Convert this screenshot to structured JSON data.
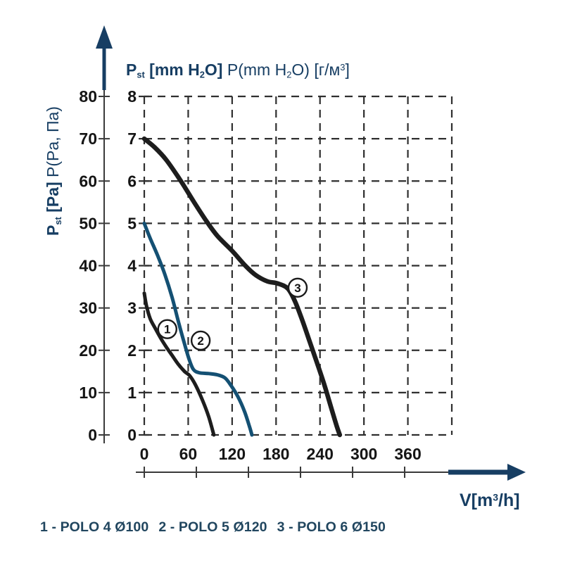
{
  "colors": {
    "navy": "#173E63",
    "curve_black": "#1d1d1d",
    "curve_blue": "#145073",
    "grid": "#2f2f2f",
    "tick_text": "#151515",
    "axis_line": "#3a3a3a",
    "legend_text": "#21465F",
    "marker_fill": "#ffffff",
    "marker_stroke": "#1a1a1a"
  },
  "top_title": {
    "p": "P",
    "sub_st": "st",
    "bracket_pre": " [mm H",
    "sub_2": "2",
    "bracket_post": "O] ",
    "alt_pre": "P(mm H",
    "alt_sub_2": "2",
    "alt_mid": "O) [г/м",
    "sup_3": "3",
    "alt_post": "]"
  },
  "left_title": {
    "p": "P",
    "sub_st": "st",
    "bracket": " [Pa] ",
    "alt": "P(Pa, Па)"
  },
  "x_title": {
    "pre": "V[m",
    "sup": "3",
    "post": "/h]"
  },
  "legend": {
    "items": [
      {
        "text": "1 - POLO 4 Ø100"
      },
      {
        "text": "2 - POLO 5 Ø120"
      },
      {
        "text": "3 - POLO 6 Ø150"
      }
    ]
  },
  "chart_data": {
    "type": "line",
    "title": "P st [mm H2O]  P(mm H2O) [г/м³]",
    "ylabel": "P st [Pa]  P(Pa, Па)",
    "xlabel": "V[m³/h]",
    "grid": true,
    "xlim": [
      0,
      420
    ],
    "ylim_pa": [
      0,
      80
    ],
    "ylim_mm": [
      0,
      8
    ],
    "x_ticks": [
      0,
      60,
      120,
      180,
      240,
      300,
      360
    ],
    "x_grid_step": 60,
    "y_pa_ticks": [
      0,
      10,
      20,
      30,
      40,
      50,
      60,
      70,
      80
    ],
    "y_mm_ticks": [
      0,
      1,
      2,
      3,
      4,
      5,
      6,
      7,
      8
    ],
    "series": [
      {
        "name": "POLO 4 Ø100",
        "slug": "polo-4",
        "marker": "1",
        "color": "#1d1d1d",
        "width": 5,
        "points_v_pa": [
          [
            0,
            33.5
          ],
          [
            3,
            30.5
          ],
          [
            8,
            27.5
          ],
          [
            14,
            25.5
          ],
          [
            22,
            23
          ],
          [
            30,
            20.8
          ],
          [
            38,
            18.8
          ],
          [
            46,
            16.8
          ],
          [
            55,
            15
          ],
          [
            62,
            14
          ],
          [
            70,
            11.8
          ],
          [
            80,
            8
          ],
          [
            88,
            4.3
          ],
          [
            95,
            0
          ]
        ]
      },
      {
        "name": "POLO 5 Ø120",
        "slug": "polo-5",
        "marker": "2",
        "color": "#145073",
        "width": 5,
        "points_v_pa": [
          [
            0,
            50
          ],
          [
            8,
            46.5
          ],
          [
            18,
            42.5
          ],
          [
            28,
            38
          ],
          [
            38,
            32.5
          ],
          [
            47,
            26.5
          ],
          [
            55,
            21.5
          ],
          [
            61,
            18
          ],
          [
            67,
            15.5
          ],
          [
            75,
            14.7
          ],
          [
            88,
            14.5
          ],
          [
            100,
            14.2
          ],
          [
            110,
            13.5
          ],
          [
            118,
            11.8
          ],
          [
            128,
            9
          ],
          [
            137,
            5.5
          ],
          [
            144,
            1.8
          ],
          [
            147,
            0
          ]
        ]
      },
      {
        "name": "POLO 6 Ø150",
        "slug": "polo-6",
        "marker": "3",
        "color": "#1d1d1d",
        "width": 6.5,
        "points_v_pa": [
          [
            0,
            70
          ],
          [
            14,
            68
          ],
          [
            30,
            65
          ],
          [
            50,
            60
          ],
          [
            68,
            55
          ],
          [
            85,
            50.5
          ],
          [
            100,
            47
          ],
          [
            120,
            43.5
          ],
          [
            138,
            40
          ],
          [
            152,
            37.8
          ],
          [
            168,
            36.3
          ],
          [
            182,
            35.8
          ],
          [
            196,
            34.6
          ],
          [
            206,
            31.5
          ],
          [
            216,
            27
          ],
          [
            226,
            22
          ],
          [
            236,
            17
          ],
          [
            246,
            11.8
          ],
          [
            256,
            6
          ],
          [
            263,
            2
          ],
          [
            267,
            0
          ]
        ]
      }
    ],
    "markers": [
      {
        "label": "1",
        "v": 31.5,
        "pa": 25
      },
      {
        "label": "2",
        "v": 77,
        "pa": 22.3
      },
      {
        "label": "3",
        "v": 209.5,
        "pa": 34.8
      }
    ]
  }
}
